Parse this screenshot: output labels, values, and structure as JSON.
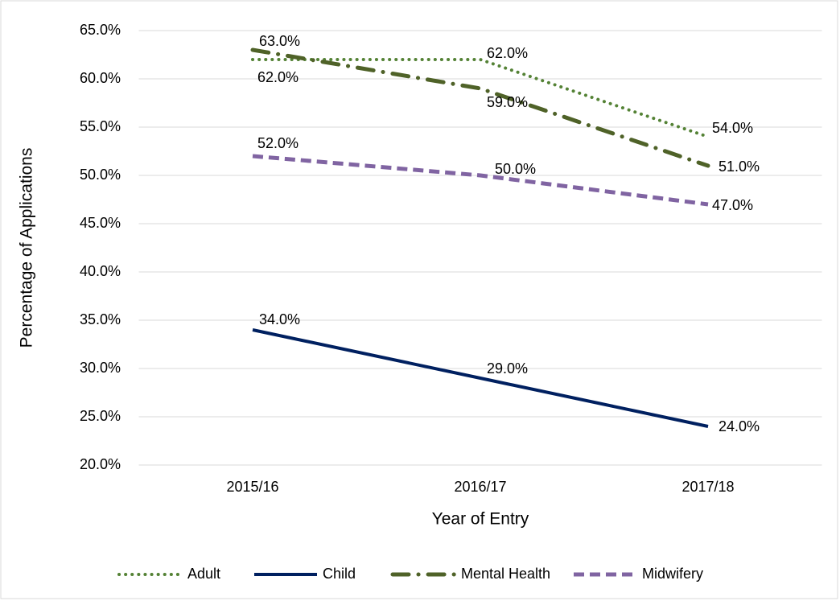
{
  "chart_data": {
    "type": "line",
    "x_label": "Year of Entry",
    "y_label": "Percentage of Applications",
    "categories": [
      "2015/16",
      "2016/17",
      "2017/18"
    ],
    "series": [
      {
        "name": "Adult",
        "color": "#548235",
        "style": "dotted",
        "values": [
          62,
          62,
          54
        ],
        "value_labels": [
          "62.0%",
          "62.0%",
          "54.0%"
        ]
      },
      {
        "name": "Child",
        "color": "#002060",
        "style": "solid",
        "values": [
          34,
          29,
          24
        ],
        "value_labels": [
          "34.0%",
          "29.0%",
          "24.0%"
        ]
      },
      {
        "name": "Mental Health",
        "color": "#4f6228",
        "style": "dashdot",
        "values": [
          63,
          59,
          51
        ],
        "value_labels": [
          "63.0%",
          "59.0%",
          "51.0%"
        ]
      },
      {
        "name": "Midwifery",
        "color": "#8064a2",
        "style": "dashed",
        "values": [
          52,
          50,
          47
        ],
        "value_labels": [
          "52.0%",
          "50.0%",
          "47.0%"
        ]
      }
    ],
    "ylim": [
      20,
      65
    ],
    "yticks": [
      {
        "value": 20,
        "label": "20.0%"
      },
      {
        "value": 25,
        "label": "25.0%"
      },
      {
        "value": 30,
        "label": "30.0%"
      },
      {
        "value": 35,
        "label": "35.0%"
      },
      {
        "value": 40,
        "label": "40.0%"
      },
      {
        "value": 45,
        "label": "45.0%"
      },
      {
        "value": 50,
        "label": "50.0%"
      },
      {
        "value": 55,
        "label": "55.0%"
      },
      {
        "value": 60,
        "label": "60.0%"
      },
      {
        "value": 65,
        "label": "65.0%"
      }
    ],
    "grid": true,
    "legend": "bottom"
  }
}
